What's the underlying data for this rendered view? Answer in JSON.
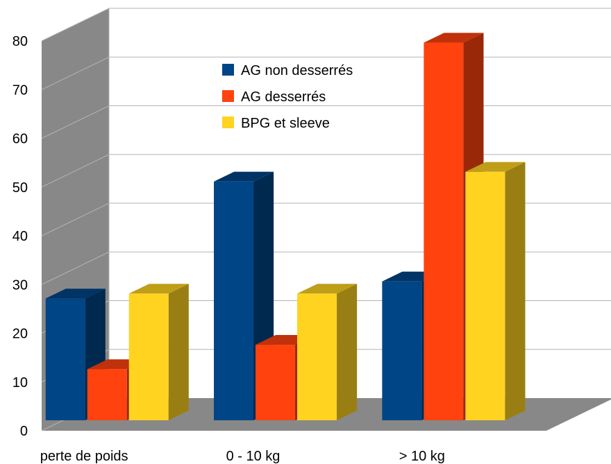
{
  "chart_data": {
    "type": "bar",
    "style": "3d-clustered",
    "categories": [
      "perte de poids",
      "0 - 10 kg",
      "> 10 kg"
    ],
    "series": [
      {
        "name": "AG non desserrés",
        "color": "#004586",
        "values": [
          25,
          49,
          28.5
        ]
      },
      {
        "name": "AG desserrés",
        "color": "#ff420e",
        "values": [
          10.5,
          15.5,
          77.5
        ]
      },
      {
        "name": "BPG et sleeve",
        "color": "#ffd320",
        "values": [
          26,
          26,
          51
        ]
      }
    ],
    "yticks": [
      "0",
      "10",
      "20",
      "30",
      "40",
      "50",
      "60",
      "70",
      "80"
    ],
    "ylim": [
      0,
      80
    ],
    "grid": true,
    "legend": "top-center"
  }
}
